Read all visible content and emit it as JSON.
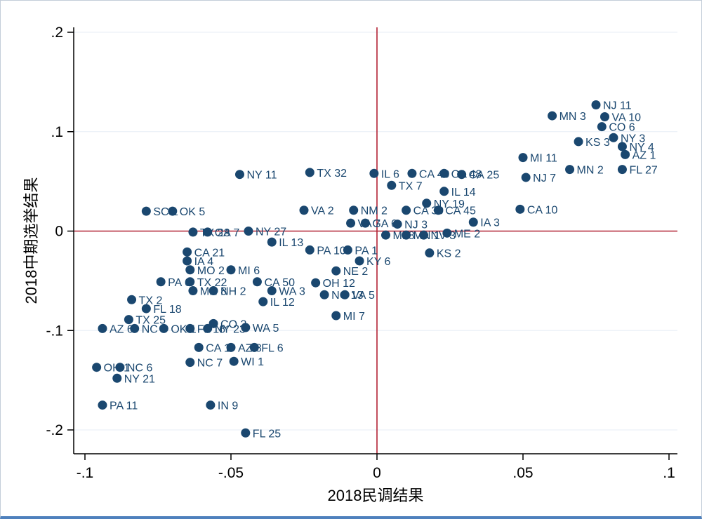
{
  "chart_data": {
    "type": "scatter",
    "title": "",
    "xlabel": "2018民调结果",
    "ylabel": "2018中期选举结果",
    "x_range": [
      -0.1,
      0.1
    ],
    "y_range": [
      -0.2,
      0.2
    ],
    "x_ticks": [
      {
        "v": -0.1,
        "label": "-.1"
      },
      {
        "v": -0.05,
        "label": "-.05"
      },
      {
        "v": 0,
        "label": "0"
      },
      {
        "v": 0.05,
        "label": ".05"
      },
      {
        "v": 0.1,
        "label": ".1"
      }
    ],
    "y_ticks": [
      {
        "v": -0.2,
        "label": "-.2"
      },
      {
        "v": -0.1,
        "label": "-.1"
      },
      {
        "v": 0,
        "label": "0"
      },
      {
        "v": 0.1,
        "label": ".1"
      },
      {
        "v": 0.2,
        "label": ".2"
      }
    ],
    "grid": {
      "show": true,
      "color": "#e7eef6"
    },
    "ref_lines": {
      "x": 0,
      "y": 0,
      "color": "#b22234"
    },
    "marker": {
      "color": "#1a476f",
      "radius": 6.5
    },
    "label_color": "#1a476f",
    "legend": "none",
    "points": [
      {
        "label": "NJ 11",
        "x": 0.075,
        "y": 0.127
      },
      {
        "label": "VA 10",
        "x": 0.078,
        "y": 0.115
      },
      {
        "label": "MN 3",
        "x": 0.06,
        "y": 0.116
      },
      {
        "label": "CO 6",
        "x": 0.077,
        "y": 0.105
      },
      {
        "label": "NY 3",
        "x": 0.081,
        "y": 0.094
      },
      {
        "label": "KS 3",
        "x": 0.069,
        "y": 0.09
      },
      {
        "label": "NY 4",
        "x": 0.084,
        "y": 0.085
      },
      {
        "label": "AZ 1",
        "x": 0.085,
        "y": 0.077
      },
      {
        "label": "MI 11",
        "x": 0.05,
        "y": 0.074
      },
      {
        "label": "FL 27",
        "x": 0.084,
        "y": 0.062
      },
      {
        "label": "MN 2",
        "x": 0.066,
        "y": 0.062
      },
      {
        "label": "NJ 7",
        "x": 0.051,
        "y": 0.054
      },
      {
        "label": "CA 10",
        "x": 0.049,
        "y": 0.022
      },
      {
        "label": "IL 6",
        "x": -0.001,
        "y": 0.058
      },
      {
        "label": "CA 49",
        "x": 0.012,
        "y": 0.058
      },
      {
        "label": "CA 48",
        "x": 0.023,
        "y": 0.058
      },
      {
        "label": "CA 25",
        "x": 0.029,
        "y": 0.057
      },
      {
        "label": "TX 7",
        "x": 0.005,
        "y": 0.046
      },
      {
        "label": "IL 14",
        "x": 0.023,
        "y": 0.04
      },
      {
        "label": "NY 19",
        "x": 0.017,
        "y": 0.028
      },
      {
        "label": "TX 32",
        "x": -0.023,
        "y": 0.059
      },
      {
        "label": "NY 11",
        "x": -0.047,
        "y": 0.057
      },
      {
        "label": "VA 2",
        "x": -0.025,
        "y": 0.021
      },
      {
        "label": "NM 2",
        "x": -0.008,
        "y": 0.021
      },
      {
        "label": "CA 39",
        "x": 0.01,
        "y": 0.021
      },
      {
        "label": "CA 45",
        "x": 0.021,
        "y": 0.021
      },
      {
        "label": "IA 3",
        "x": 0.033,
        "y": 0.009
      },
      {
        "label": "VA 7",
        "x": -0.009,
        "y": 0.008
      },
      {
        "label": "GA 6",
        "x": -0.004,
        "y": 0.008
      },
      {
        "label": "NJ 3",
        "x": 0.007,
        "y": 0.007
      },
      {
        "label": "ME 2",
        "x": 0.024,
        "y": -0.002
      },
      {
        "label": "MI 8",
        "x": 0.003,
        "y": -0.004
      },
      {
        "label": "MN 1",
        "x": 0.01,
        "y": -0.004
      },
      {
        "label": "NV 3",
        "x": 0.016,
        "y": -0.004
      },
      {
        "label": "KS 2",
        "x": 0.018,
        "y": -0.022
      },
      {
        "label": "SC 1",
        "x": -0.079,
        "y": 0.02
      },
      {
        "label": "OK 5",
        "x": -0.07,
        "y": 0.02
      },
      {
        "label": "NY 27",
        "x": -0.044,
        "y": 0.0
      },
      {
        "label": "TX 23",
        "x": -0.063,
        "y": -0.001
      },
      {
        "label": "GA 7",
        "x": -0.058,
        "y": -0.001
      },
      {
        "label": "IL 13",
        "x": -0.036,
        "y": -0.011
      },
      {
        "label": "PA 10",
        "x": -0.023,
        "y": -0.019
      },
      {
        "label": "PA 1",
        "x": -0.01,
        "y": -0.019
      },
      {
        "label": "KY 6",
        "x": -0.006,
        "y": -0.03
      },
      {
        "label": "NE 2",
        "x": -0.014,
        "y": -0.04
      },
      {
        "label": "CA 21",
        "x": -0.065,
        "y": -0.021
      },
      {
        "label": "IA 4",
        "x": -0.065,
        "y": -0.03
      },
      {
        "label": "MO 2",
        "x": -0.064,
        "y": -0.039
      },
      {
        "label": "MI 6",
        "x": -0.05,
        "y": -0.039
      },
      {
        "label": "PA 6",
        "x": -0.074,
        "y": -0.051
      },
      {
        "label": "TX 22",
        "x": -0.064,
        "y": -0.051
      },
      {
        "label": "CA 50",
        "x": -0.041,
        "y": -0.051
      },
      {
        "label": "OH 12",
        "x": -0.021,
        "y": -0.052
      },
      {
        "label": "MN 8",
        "x": -0.063,
        "y": -0.06
      },
      {
        "label": "NH 2",
        "x": -0.056,
        "y": -0.06
      },
      {
        "label": "WA 3",
        "x": -0.036,
        "y": -0.06
      },
      {
        "label": "NC 13",
        "x": -0.018,
        "y": -0.064
      },
      {
        "label": "VA 5",
        "x": -0.011,
        "y": -0.064
      },
      {
        "label": "IL 12",
        "x": -0.039,
        "y": -0.071
      },
      {
        "label": "TX 2",
        "x": -0.084,
        "y": -0.069
      },
      {
        "label": "FL 18",
        "x": -0.079,
        "y": -0.078
      },
      {
        "label": "TX 25",
        "x": -0.085,
        "y": -0.089
      },
      {
        "label": "MI 7",
        "x": -0.014,
        "y": -0.085
      },
      {
        "label": "CO 3",
        "x": -0.056,
        "y": -0.093
      },
      {
        "label": "WA 5",
        "x": -0.045,
        "y": -0.097
      },
      {
        "label": "AZ 6",
        "x": -0.094,
        "y": -0.098
      },
      {
        "label": "NC 8",
        "x": -0.083,
        "y": -0.098
      },
      {
        "label": "OK 1",
        "x": -0.073,
        "y": -0.098
      },
      {
        "label": "FL 16",
        "x": -0.064,
        "y": -0.098
      },
      {
        "label": "NY 23",
        "x": -0.058,
        "y": -0.098
      },
      {
        "label": "CA 1",
        "x": -0.061,
        "y": -0.117
      },
      {
        "label": "AZ 8",
        "x": -0.05,
        "y": -0.117
      },
      {
        "label": "FL 6",
        "x": -0.042,
        "y": -0.117
      },
      {
        "label": "NC 7",
        "x": -0.064,
        "y": -0.132
      },
      {
        "label": "WI 1",
        "x": -0.049,
        "y": -0.131
      },
      {
        "label": "OH 1",
        "x": -0.096,
        "y": -0.137
      },
      {
        "label": "NC 6",
        "x": -0.088,
        "y": -0.137
      },
      {
        "label": "NY 21",
        "x": -0.089,
        "y": -0.148
      },
      {
        "label": "PA 11",
        "x": -0.094,
        "y": -0.175
      },
      {
        "label": "IN 9",
        "x": -0.057,
        "y": -0.175
      },
      {
        "label": "FL 25",
        "x": -0.045,
        "y": -0.203
      }
    ]
  }
}
